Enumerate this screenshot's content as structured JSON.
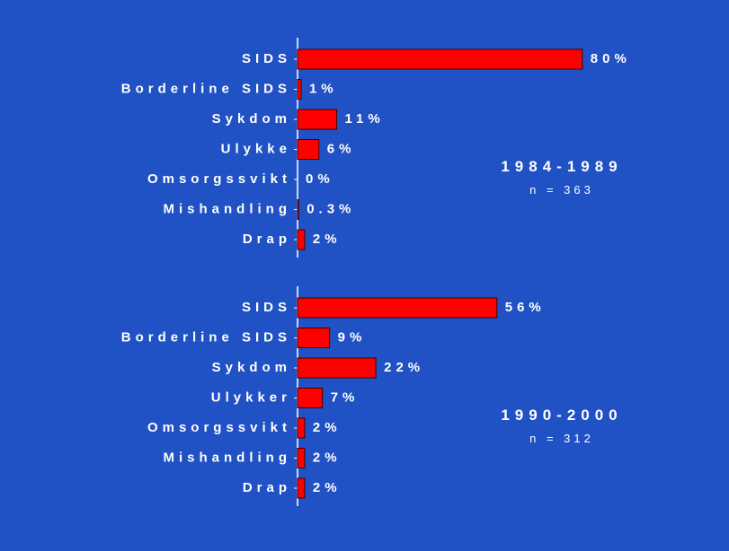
{
  "chart_data": [
    {
      "type": "bar",
      "orientation": "horizontal",
      "title": "1984-1989",
      "subtitle": "n = 363",
      "categories": [
        "SIDS",
        "Borderline SIDS",
        "Sykdom",
        "Ulykke",
        "Omsorgssvikt",
        "Mishandling",
        "Drap"
      ],
      "values": [
        80,
        1,
        11,
        6,
        0,
        0.3,
        2
      ],
      "value_labels": [
        "80%",
        "1%",
        "11%",
        "6%",
        "0%",
        "0.3%",
        "2%"
      ],
      "color": "#ff0000",
      "xlim": [
        0,
        100
      ]
    },
    {
      "type": "bar",
      "orientation": "horizontal",
      "title": "1990-2000",
      "subtitle": "n = 312",
      "categories": [
        "SIDS",
        "Borderline SIDS",
        "Sykdom",
        "Ulykker",
        "Omsorgssvikt",
        "Mishandling",
        "Drap"
      ],
      "values": [
        56,
        9,
        22,
        7,
        2,
        2,
        2
      ],
      "value_labels": [
        "56%",
        "9%",
        "22%",
        "7%",
        "2%",
        "2%",
        "2%"
      ],
      "color": "#ff0000",
      "xlim": [
        0,
        100
      ]
    }
  ]
}
